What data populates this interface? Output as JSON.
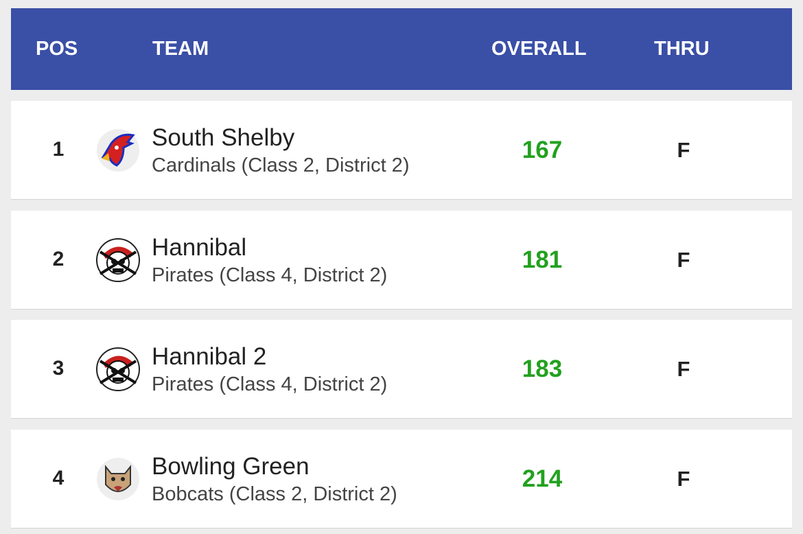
{
  "header": {
    "columns": [
      "POS",
      "TEAM",
      "OVERALL",
      "THRU"
    ]
  },
  "rows": [
    {
      "pos": 1,
      "team": "South Shelby",
      "subtitle": "Cardinals (Class 2, District 2)",
      "overall": 167,
      "thru": "F"
    },
    {
      "pos": 2,
      "team": "Hannibal",
      "subtitle": "Pirates (Class 4, District 2)",
      "overall": 181,
      "thru": "F"
    },
    {
      "pos": 3,
      "team": "Hannibal 2",
      "subtitle": "Pirates (Class 4, District 2)",
      "overall": 183,
      "thru": "F"
    },
    {
      "pos": 4,
      "team": "Bowling Green",
      "subtitle": "Bobcats (Class 2, District 2)",
      "overall": 214,
      "thru": "F"
    }
  ]
}
